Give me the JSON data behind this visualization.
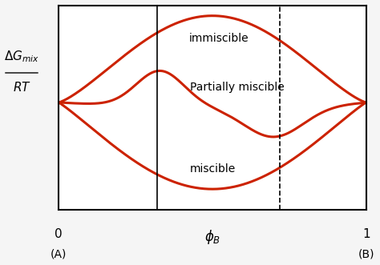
{
  "background_color": "#f5f5f5",
  "plot_bg": "#ffffff",
  "curve_color": "#cc2200",
  "curve_lw": 2.2,
  "dashed_line_color": "black",
  "solid_line_color": "black",
  "label_immiscible": "immiscible",
  "label_partially": "Partially miscible",
  "label_miscible": "miscible",
  "xlabel_phi": "$\\phi_B$",
  "ylabel_top": "$\\Delta G_{mix}$",
  "ylabel_bottom": "$RT$",
  "x0_label": "0",
  "x1_label": "1",
  "xA_label": "(A)",
  "xB_label": "(B)",
  "vline_solid_x": 0.32,
  "vline_dashed_x": 0.72,
  "xlim": [
    0.0,
    1.0
  ],
  "ylim": [
    -1.0,
    1.0
  ]
}
